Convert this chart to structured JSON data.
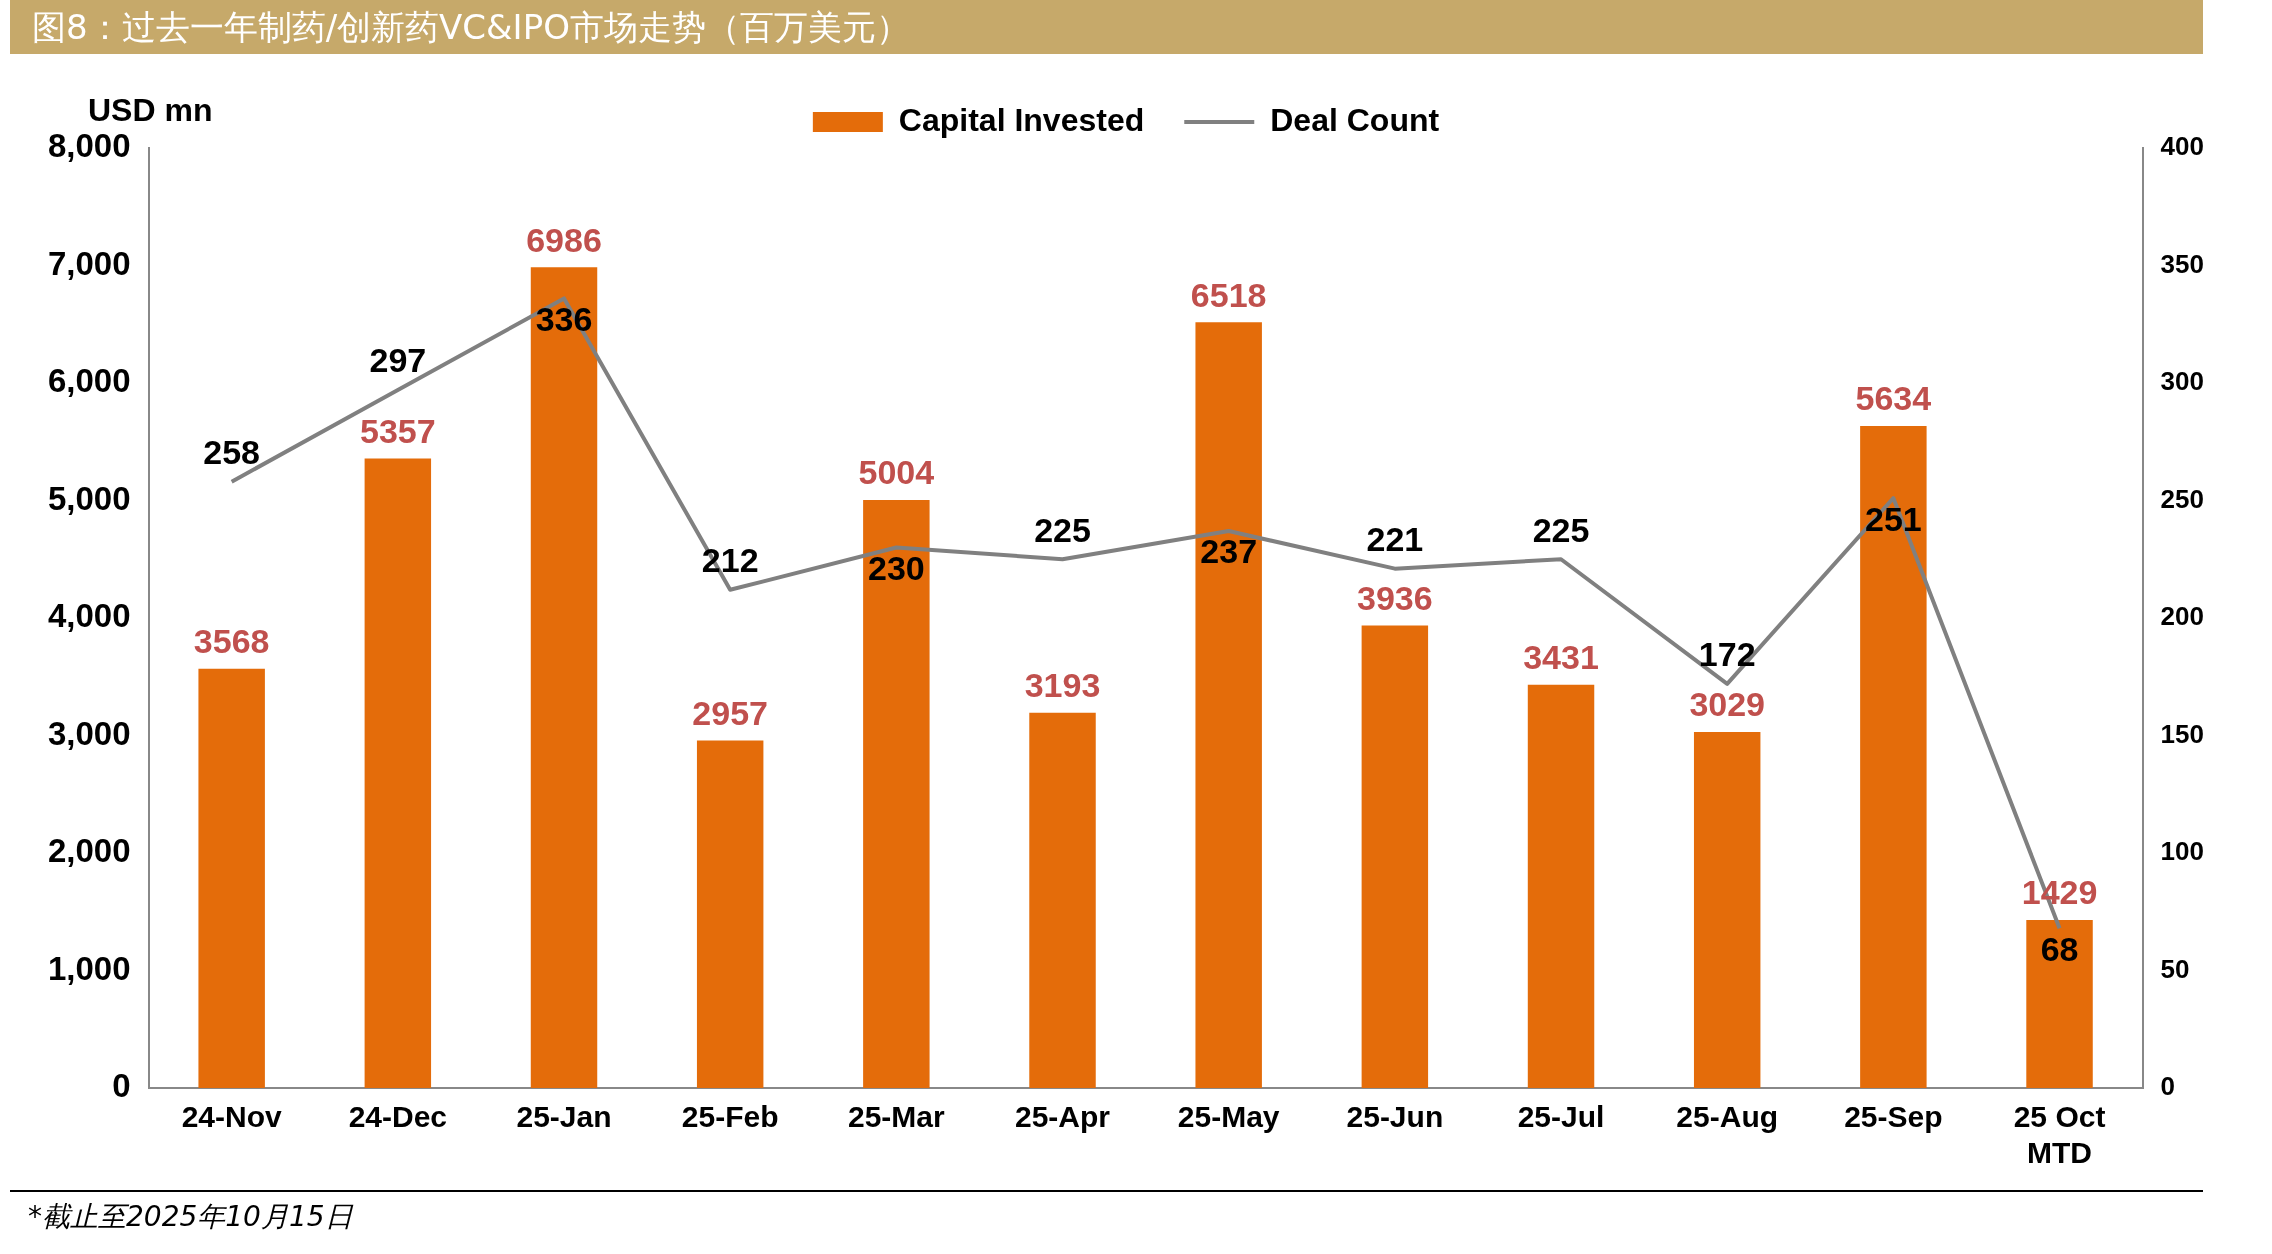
{
  "chart_data": {
    "type": "bar",
    "title": "图8：过去一年制药/创新药VC&IPO市场走势（百万美元）",
    "ylabel": "USD mn",
    "categories": [
      "24-Nov",
      "24-Dec",
      "25-Jan",
      "25-Feb",
      "25-Mar",
      "25-Apr",
      "25-May",
      "25-Jun",
      "25-Jul",
      "25-Aug",
      "25-Sep",
      "25 Oct MTD"
    ],
    "series": [
      {
        "name": "Capital Invested",
        "type": "bar",
        "color": "#e46c0a",
        "values": [
          3568,
          5357,
          6986,
          2957,
          5004,
          3193,
          6518,
          3936,
          3431,
          3029,
          5634,
          1429
        ]
      },
      {
        "name": "Deal Count",
        "type": "line",
        "axis": "y2",
        "color": "#808080",
        "values": [
          258,
          297,
          336,
          212,
          230,
          225,
          237,
          221,
          225,
          172,
          251,
          68
        ]
      }
    ],
    "ylim": [
      0,
      8000
    ],
    "yticks": [
      0,
      {
        "value": 1000,
        "label": "1,000"
      },
      {
        "value": 2000,
        "label": "2,000"
      },
      {
        "value": 3000,
        "label": "3,000"
      },
      {
        "value": 4000,
        "label": "4,000"
      },
      {
        "value": 5000,
        "label": "5,000"
      },
      {
        "value": 6000,
        "label": "6,000"
      },
      {
        "value": 7000,
        "label": "7,000"
      },
      {
        "value": 8000,
        "label": "8,000"
      }
    ],
    "y2lim": [
      0,
      400
    ],
    "y2ticks": [
      0,
      50,
      100,
      150,
      200,
      250,
      300,
      350,
      400
    ],
    "grid": false,
    "legend": "top",
    "marker": "none",
    "data_labels": true,
    "annotations": [
      "*截止至2025年10月15日"
    ]
  }
}
